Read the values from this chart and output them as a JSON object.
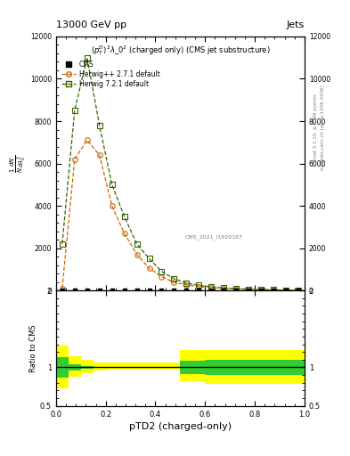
{
  "title_left": "13000 GeV pp",
  "title_right": "Jets",
  "subtitle": "$(p_T^D)^2\\lambda\\_0^2$ (charged only) (CMS jet substructure)",
  "xlabel": "pTD2 (charged-only)",
  "ylabel_ratio": "Ratio to CMS",
  "cms_ref": "CMS_2021_I1920187",
  "right_label1": "Rivet 3.1.10, ≥ 3.5M events",
  "right_label2": "mcplots.cern.ch [arXiv:1306.3436]",
  "herwig_pp_x": [
    0.025,
    0.075,
    0.125,
    0.175,
    0.225,
    0.275,
    0.325,
    0.375,
    0.425,
    0.475,
    0.525,
    0.575,
    0.625,
    0.675,
    0.725,
    0.775,
    0.825,
    0.875,
    0.925,
    0.975
  ],
  "herwig_pp_y": [
    100,
    6200,
    7100,
    6400,
    4000,
    2700,
    1700,
    1050,
    650,
    380,
    270,
    180,
    130,
    90,
    65,
    45,
    30,
    20,
    15,
    8
  ],
  "herwig7_x": [
    0.025,
    0.075,
    0.125,
    0.175,
    0.225,
    0.275,
    0.325,
    0.375,
    0.425,
    0.475,
    0.525,
    0.575,
    0.625,
    0.675,
    0.725,
    0.775,
    0.825,
    0.875,
    0.925,
    0.975
  ],
  "herwig7_y": [
    2200,
    8500,
    11000,
    7800,
    5000,
    3500,
    2200,
    1500,
    900,
    550,
    350,
    240,
    165,
    115,
    82,
    58,
    40,
    28,
    19,
    11
  ],
  "cms_x": [
    0.025,
    0.075,
    0.125,
    0.175,
    0.225,
    0.275,
    0.325,
    0.375,
    0.425,
    0.475,
    0.525,
    0.575,
    0.625,
    0.675,
    0.725,
    0.775,
    0.825,
    0.875,
    0.925,
    0.975
  ],
  "cms_y": [
    5,
    5,
    5,
    5,
    5,
    5,
    5,
    5,
    5,
    5,
    5,
    5,
    5,
    5,
    5,
    5,
    5,
    5,
    5,
    5
  ],
  "color_herwig_pp": "#cc6600",
  "color_herwig7": "#336600",
  "color_cms": "#000000",
  "ylim_main": [
    0,
    12000
  ],
  "yticks_main": [
    0,
    2000,
    4000,
    6000,
    8000,
    10000,
    12000
  ],
  "xlim": [
    0,
    1
  ],
  "ratio_edges": [
    0.0,
    0.05,
    0.1,
    0.15,
    0.2,
    0.3,
    0.5,
    0.6,
    0.65,
    0.7,
    0.75,
    0.8,
    0.85,
    0.9,
    0.95,
    1.0
  ],
  "ratio_yellow_low": [
    0.73,
    0.88,
    0.93,
    0.96,
    0.97,
    0.97,
    0.82,
    0.79,
    0.79,
    0.79,
    0.79,
    0.79,
    0.79,
    0.79,
    0.79,
    0.79
  ],
  "ratio_yellow_high": [
    1.28,
    1.15,
    1.1,
    1.06,
    1.06,
    1.06,
    1.22,
    1.22,
    1.22,
    1.22,
    1.22,
    1.22,
    1.22,
    1.22,
    1.22,
    1.22
  ],
  "ratio_green_low": [
    0.87,
    0.96,
    0.98,
    0.995,
    0.995,
    0.995,
    0.91,
    0.9,
    0.9,
    0.9,
    0.9,
    0.9,
    0.9,
    0.9,
    0.9,
    0.9
  ],
  "ratio_green_high": [
    1.13,
    1.04,
    1.02,
    1.005,
    1.005,
    1.005,
    1.09,
    1.1,
    1.1,
    1.1,
    1.1,
    1.1,
    1.1,
    1.1,
    1.1,
    1.1
  ]
}
